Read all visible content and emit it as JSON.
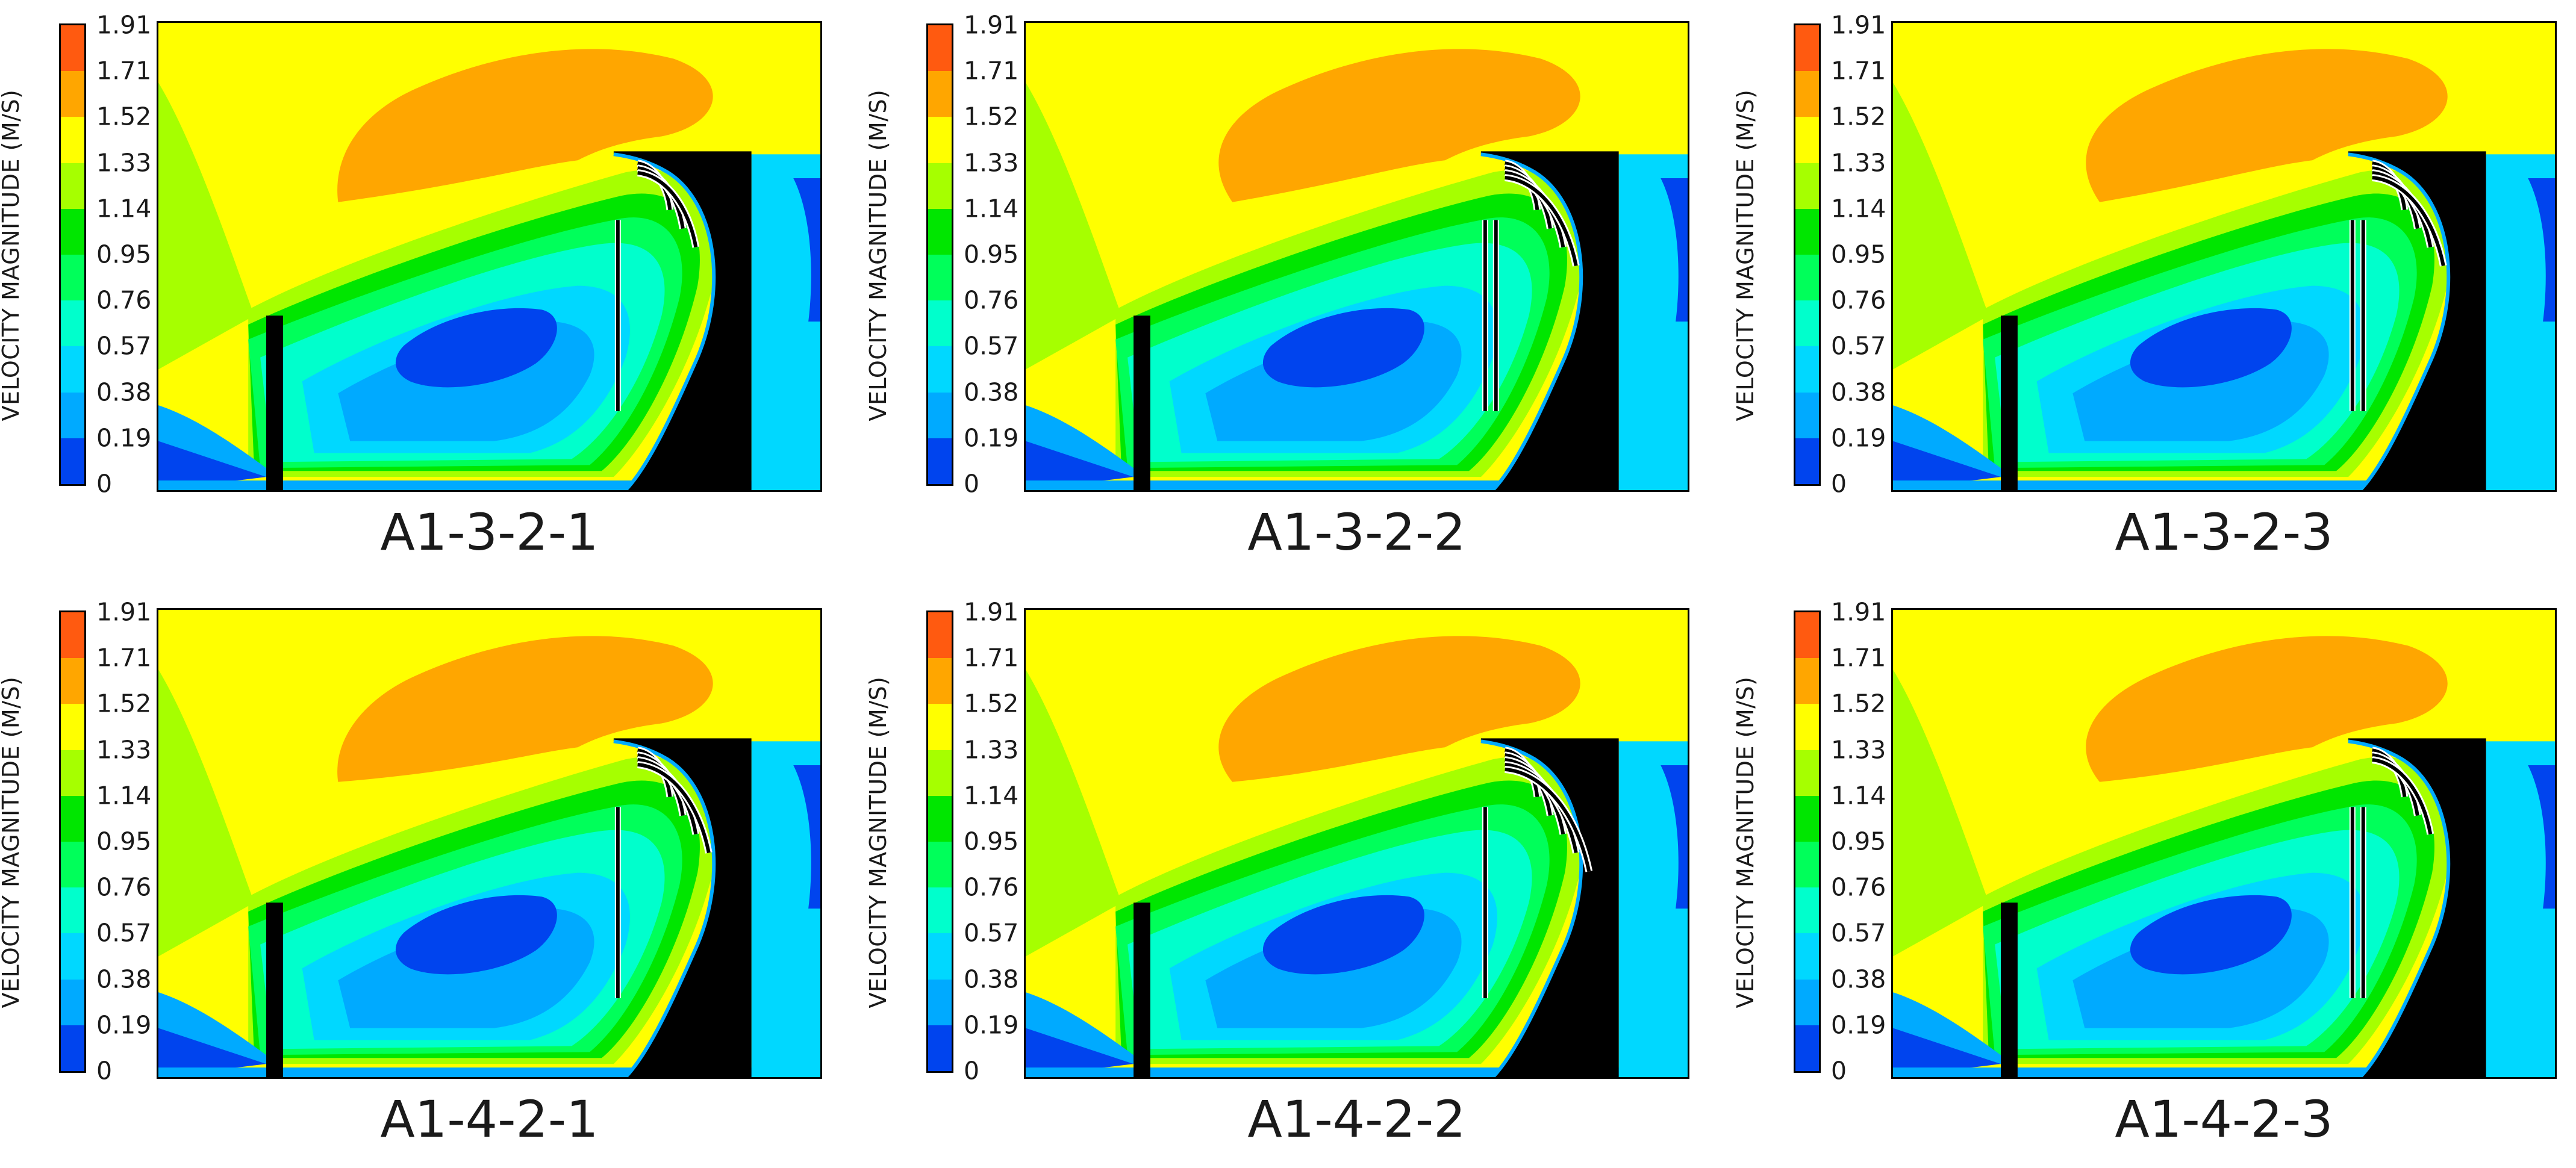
{
  "colorbar": {
    "label": "VELOCITY MAGNITUDE (M/S)",
    "ticks": [
      "1.91",
      "1.71",
      "1.52",
      "1.33",
      "1.14",
      "0.95",
      "0.76",
      "0.57",
      "0.38",
      "0.19",
      "0"
    ],
    "colors": [
      "#ff5a10",
      "#ffa600",
      "#ffff00",
      "#a6ff00",
      "#00e600",
      "#00ff5a",
      "#00ffcc",
      "#00d8ff",
      "#00aaff",
      "#0044ee"
    ]
  },
  "panels": [
    {
      "label": "A1-3-2-1",
      "curved_blades": 3,
      "straight_blades": 1
    },
    {
      "label": "A1-3-2-2",
      "curved_blades": 4,
      "straight_blades": 2
    },
    {
      "label": "A1-3-2-3",
      "curved_blades": 4,
      "straight_blades": 2
    },
    {
      "label": "A1-4-2-1",
      "curved_blades": 4,
      "straight_blades": 1
    },
    {
      "label": "A1-4-2-2",
      "curved_blades": 5,
      "straight_blades": 1
    },
    {
      "label": "A1-4-2-3",
      "curved_blades": 3,
      "straight_blades": 2
    }
  ]
}
